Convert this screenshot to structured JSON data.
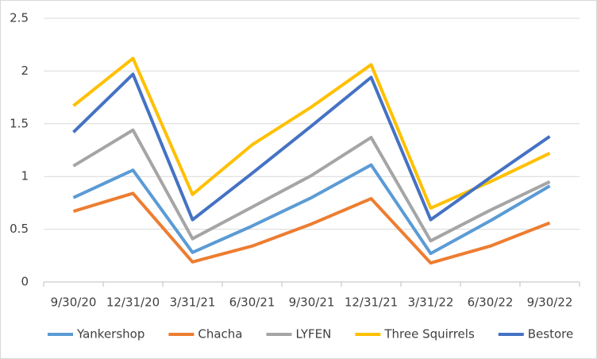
{
  "chart_data": {
    "type": "line",
    "categories": [
      "9/30/20",
      "12/31/20",
      "3/31/21",
      "6/30/21",
      "9/30/21",
      "12/31/21",
      "3/31/22",
      "6/30/22",
      "9/30/22"
    ],
    "series": [
      {
        "name": "Yankershop",
        "color": "#5b9bd5",
        "values": [
          0.8,
          1.06,
          0.28,
          0.53,
          0.8,
          1.11,
          0.27,
          0.58,
          0.91
        ]
      },
      {
        "name": "Chacha",
        "color": "#ed7d31",
        "values": [
          0.67,
          0.84,
          0.19,
          0.34,
          0.55,
          0.79,
          0.18,
          0.34,
          0.56
        ]
      },
      {
        "name": "LYFEN",
        "color": "#a5a5a5",
        "values": [
          1.1,
          1.44,
          0.41,
          0.71,
          1.01,
          1.37,
          0.39,
          0.68,
          0.95
        ]
      },
      {
        "name": "Three Squirrels",
        "color": "#ffc000",
        "values": [
          1.67,
          2.12,
          0.83,
          1.3,
          1.66,
          2.06,
          0.7,
          0.95,
          1.22
        ]
      },
      {
        "name": "Bestore",
        "color": "#4472c4",
        "values": [
          1.42,
          1.97,
          0.59,
          1.03,
          1.48,
          1.94,
          0.59,
          0.99,
          1.38
        ]
      }
    ],
    "ylim": [
      0,
      2.5
    ],
    "yticks": [
      0,
      0.5,
      1,
      1.5,
      2,
      2.5
    ],
    "grid": true,
    "legend": "bottom"
  }
}
